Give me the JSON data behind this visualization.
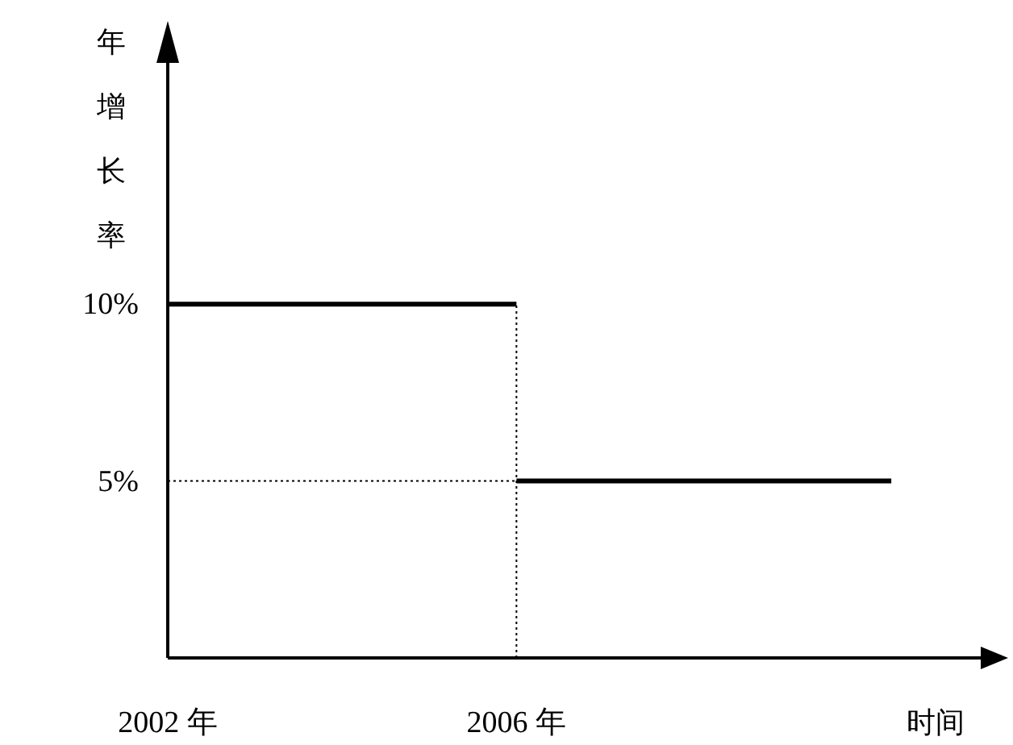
{
  "chart_data": {
    "type": "line",
    "xlabel": "时间",
    "ylabel": "年增长率",
    "xlim": [
      2002,
      2011.4
    ],
    "ylim": [
      0,
      17
    ],
    "xticks": [
      {
        "value": 2002,
        "label": "2002 年"
      },
      {
        "value": 2006,
        "label": "2006 年"
      }
    ],
    "yticks": [
      {
        "value": 5,
        "label": "5%"
      },
      {
        "value": 10,
        "label": "10%"
      }
    ],
    "series": [
      {
        "color": "#000000",
        "x": [
          2002,
          2006
        ],
        "values": [
          10,
          10
        ]
      },
      {
        "color": "#000000",
        "x": [
          2006,
          2010.3
        ],
        "values": [
          5,
          5
        ]
      }
    ],
    "ref_lines": [
      {
        "axis": "x",
        "value": 2006,
        "color": "#000000",
        "line_style": "dotted"
      },
      {
        "axis": "y",
        "value": 5,
        "color": "#000000",
        "line_style": "dotted"
      }
    ],
    "grid": false,
    "marker": "none",
    "line_style": "solid"
  }
}
